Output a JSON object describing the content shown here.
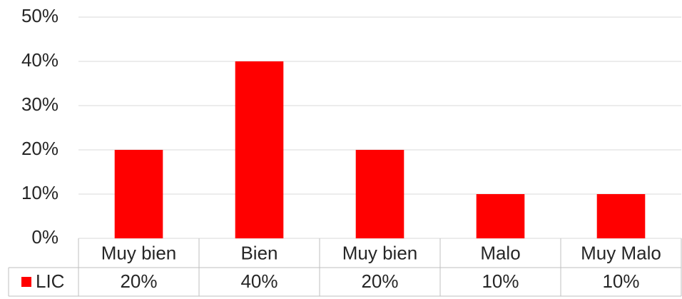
{
  "chart_data": {
    "type": "bar",
    "categories": [
      "Muy bien",
      "Bien",
      "Muy bien",
      "Malo",
      "Muy Malo"
    ],
    "series": [
      {
        "name": "LIC",
        "color": "#ff0000",
        "values": [
          20,
          40,
          20,
          10,
          10
        ],
        "value_labels": [
          "20%",
          "40%",
          "20%",
          "10%",
          "10%"
        ]
      }
    ],
    "ylim": [
      0,
      50
    ],
    "yticks": [
      {
        "value": 0,
        "label": "0%"
      },
      {
        "value": 10,
        "label": "10%"
      },
      {
        "value": 20,
        "label": "20%"
      },
      {
        "value": 30,
        "label": "30%"
      },
      {
        "value": 40,
        "label": "40%"
      },
      {
        "value": 50,
        "label": "50%"
      }
    ],
    "grid": true
  }
}
